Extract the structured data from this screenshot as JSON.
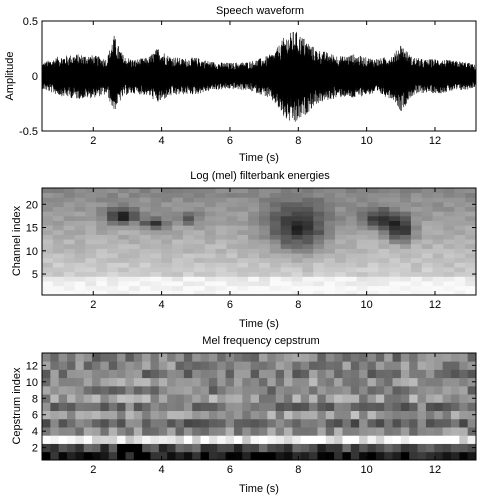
{
  "chart_data": [
    {
      "type": "line",
      "title": "Speech waveform",
      "xlabel": "Time (s)",
      "ylabel": "Amplitude",
      "xlim": [
        0.5,
        13.2
      ],
      "ylim": [
        -0.5,
        0.5
      ],
      "xticks": [
        2,
        4,
        6,
        8,
        10,
        12
      ],
      "yticks": [
        -0.5,
        0,
        0.5
      ],
      "ytick_labels": [
        "-0.5",
        "0",
        "0.5"
      ],
      "envelope": {
        "x": [
          0.5,
          1.0,
          1.5,
          2.0,
          2.4,
          2.6,
          2.7,
          2.9,
          3.2,
          3.6,
          3.9,
          4.2,
          4.6,
          5.0,
          5.5,
          6.0,
          6.5,
          7.0,
          7.3,
          7.6,
          7.9,
          8.2,
          8.5,
          8.9,
          9.3,
          9.6,
          10.0,
          10.4,
          10.8,
          11.0,
          11.3,
          11.7,
          12.1,
          12.5,
          12.9,
          13.2
        ],
        "upper": [
          0.12,
          0.18,
          0.2,
          0.19,
          0.16,
          0.38,
          0.3,
          0.18,
          0.15,
          0.17,
          0.26,
          0.19,
          0.16,
          0.17,
          0.13,
          0.12,
          0.13,
          0.17,
          0.22,
          0.36,
          0.42,
          0.34,
          0.25,
          0.21,
          0.18,
          0.2,
          0.17,
          0.16,
          0.2,
          0.3,
          0.18,
          0.15,
          0.16,
          0.14,
          0.13,
          0.1
        ],
        "lower": [
          -0.12,
          -0.18,
          -0.21,
          -0.2,
          -0.17,
          -0.33,
          -0.27,
          -0.18,
          -0.16,
          -0.18,
          -0.25,
          -0.19,
          -0.17,
          -0.17,
          -0.13,
          -0.12,
          -0.13,
          -0.18,
          -0.25,
          -0.4,
          -0.45,
          -0.36,
          -0.26,
          -0.22,
          -0.19,
          -0.21,
          -0.17,
          -0.17,
          -0.22,
          -0.33,
          -0.19,
          -0.15,
          -0.16,
          -0.14,
          -0.13,
          -0.1
        ]
      }
    },
    {
      "type": "heatmap",
      "title": "Log (mel) filterbank energies",
      "xlabel": "Time (s)",
      "ylabel": "Channel index",
      "xlim": [
        0.5,
        13.2
      ],
      "ylim": [
        0.5,
        23.5
      ],
      "xticks": [
        2,
        4,
        6,
        8,
        10,
        12
      ],
      "yticks": [
        5,
        10,
        15,
        20
      ],
      "n_channels": 23,
      "n_frames": 40,
      "colormap": "gray",
      "dark_regions": [
        {
          "t": 2.8,
          "ch": 17.5,
          "w": 0.45,
          "h": 1.6,
          "level": 0.95
        },
        {
          "t": 3.8,
          "ch": 16.0,
          "w": 0.35,
          "h": 1.3,
          "level": 0.8
        },
        {
          "t": 4.8,
          "ch": 17.0,
          "w": 0.3,
          "h": 1.4,
          "level": 0.55
        },
        {
          "t": 8.0,
          "ch": 15.0,
          "w": 0.9,
          "h": 5.0,
          "level": 0.9
        },
        {
          "t": 10.4,
          "ch": 17.0,
          "w": 0.6,
          "h": 2.2,
          "level": 0.75
        },
        {
          "t": 11.0,
          "ch": 14.5,
          "w": 0.4,
          "h": 2.5,
          "level": 0.85
        }
      ]
    },
    {
      "type": "heatmap",
      "title": "Mel frequency cepstrum",
      "xlabel": "Time (s)",
      "ylabel": "Cepstrum index",
      "xlim": [
        0.5,
        13.2
      ],
      "ylim": [
        0.5,
        13.5
      ],
      "xticks": [
        2,
        4,
        6,
        8,
        10,
        12
      ],
      "yticks": [
        2,
        4,
        6,
        8,
        10,
        12
      ],
      "n_rows": 13,
      "n_frames": 52,
      "colormap": "gray",
      "row_base_levels": [
        0.08,
        0.28,
        0.92,
        0.55,
        0.42,
        0.62,
        0.45,
        0.6,
        0.5,
        0.58,
        0.48,
        0.52,
        0.5
      ]
    }
  ]
}
